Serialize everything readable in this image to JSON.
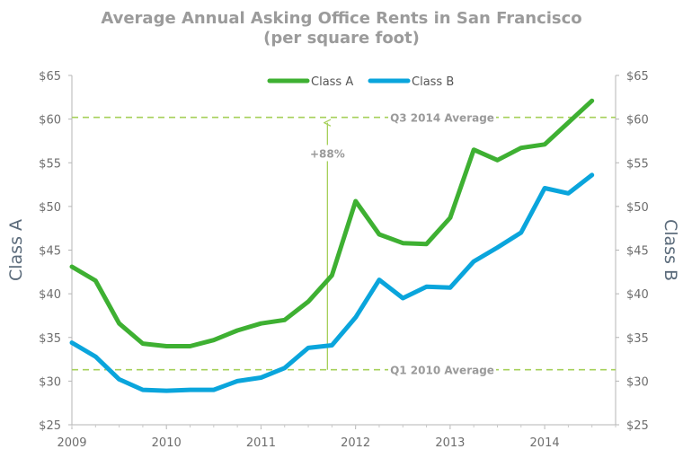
{
  "title": "Average Annual Asking Office Rents in San Francisco",
  "subtitle": "(per square foot)",
  "colors": {
    "class_a": "#3eb032",
    "class_b": "#0aa5dc",
    "reference": "#a6d05a",
    "annotation": "#a6d05a",
    "axis_text": "#6d6d6d",
    "reference_text": "#9a9a9a"
  },
  "chart_data": {
    "type": "line",
    "ylabel_left": "Class A",
    "ylabel_right": "Class B",
    "ylim": [
      25,
      65
    ],
    "y_ticks": [
      "$25",
      "$30",
      "$35",
      "$40",
      "$45",
      "$50",
      "$55",
      "$60",
      "$65"
    ],
    "y_tick_values": [
      25,
      30,
      35,
      40,
      45,
      50,
      55,
      60,
      65
    ],
    "xlim": [
      2009,
      2014.75
    ],
    "x_ticks": [
      "2009",
      "2010",
      "2011",
      "2012",
      "2013",
      "2014"
    ],
    "x_tick_values": [
      2009,
      2010,
      2011,
      2012,
      2013,
      2014
    ],
    "legend_position": "top-center",
    "grid": false,
    "series": [
      {
        "name": "Class A",
        "color": "#3eb032",
        "x": [
          2009.0,
          2009.25,
          2009.5,
          2009.75,
          2010.0,
          2010.25,
          2010.5,
          2010.75,
          2011.0,
          2011.25,
          2011.5,
          2011.75,
          2012.0,
          2012.25,
          2012.5,
          2012.75,
          2013.0,
          2013.25,
          2013.5,
          2013.75,
          2014.0,
          2014.25,
          2014.5
        ],
        "values": [
          43.1,
          41.5,
          36.6,
          34.3,
          34.0,
          34.0,
          34.7,
          35.8,
          36.6,
          37.0,
          39.1,
          42.1,
          50.6,
          46.8,
          45.8,
          45.7,
          48.7,
          56.5,
          55.3,
          56.7,
          57.1,
          59.6,
          62.1
        ]
      },
      {
        "name": "Class B",
        "color": "#0aa5dc",
        "x": [
          2009.0,
          2009.25,
          2009.5,
          2009.75,
          2010.0,
          2010.25,
          2010.5,
          2010.75,
          2011.0,
          2011.25,
          2011.5,
          2011.75,
          2012.0,
          2012.25,
          2012.5,
          2012.75,
          2013.0,
          2013.25,
          2013.5,
          2013.75,
          2014.0,
          2014.25,
          2014.5
        ],
        "values": [
          34.4,
          32.8,
          30.2,
          29.0,
          28.9,
          29.0,
          29.0,
          30.0,
          30.4,
          31.5,
          33.8,
          34.1,
          37.3,
          41.6,
          39.5,
          40.8,
          40.7,
          43.7,
          45.3,
          47.0,
          52.1,
          51.5,
          53.6
        ]
      }
    ],
    "reference_lines": [
      {
        "label": "Q3 2014 Average",
        "value": 60.2
      },
      {
        "label": "Q1 2010 Average",
        "value": 31.3
      }
    ],
    "annotation": {
      "label": "+88%",
      "x": 2011.75,
      "from": 31.3,
      "to": 60.2
    }
  }
}
